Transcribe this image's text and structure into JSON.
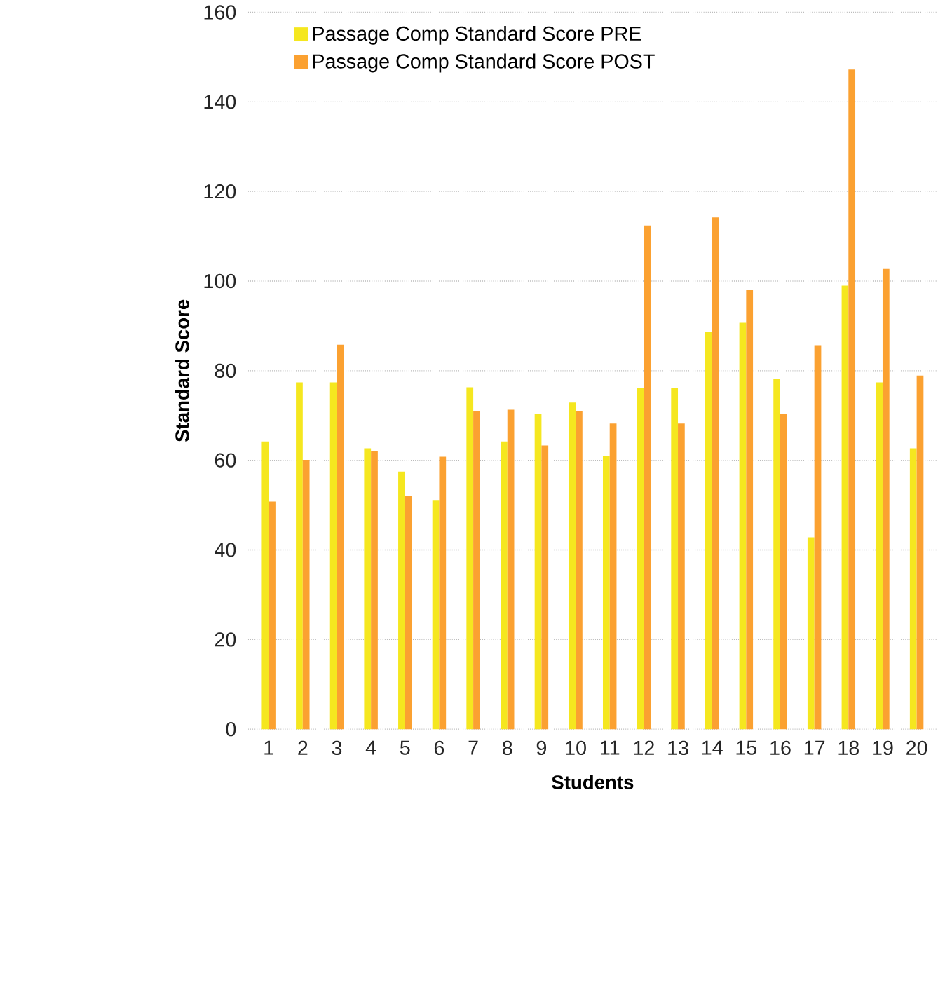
{
  "chart_data": {
    "type": "bar",
    "xlabel": "Students",
    "ylabel": "Standard Score",
    "categories": [
      "1",
      "2",
      "3",
      "4",
      "5",
      "6",
      "7",
      "8",
      "9",
      "10",
      "11",
      "12",
      "13",
      "14",
      "15",
      "16",
      "17",
      "18",
      "19",
      "20"
    ],
    "series": [
      {
        "name": "Passage Comp Standard Score PRE",
        "color": "#f5e71f",
        "values": [
          64.2,
          77.4,
          77.4,
          62.7,
          57.5,
          51.0,
          76.3,
          64.2,
          70.3,
          72.9,
          60.9,
          76.2,
          76.2,
          88.6,
          90.7,
          78.1,
          42.8,
          99.0,
          77.4,
          62.7
        ]
      },
      {
        "name": "Passage Comp Standard Score POST",
        "color": "#fba131",
        "values": [
          50.8,
          60.1,
          85.8,
          62.0,
          52.0,
          60.8,
          70.9,
          71.3,
          63.3,
          70.9,
          68.2,
          112.4,
          68.2,
          114.2,
          98.1,
          70.3,
          85.7,
          147.2,
          102.7,
          78.9
        ]
      }
    ],
    "ylim": [
      0,
      160
    ],
    "yticks": [
      0,
      20,
      40,
      60,
      80,
      100,
      120,
      140,
      160
    ],
    "grid": "y",
    "legend": "top left"
  }
}
